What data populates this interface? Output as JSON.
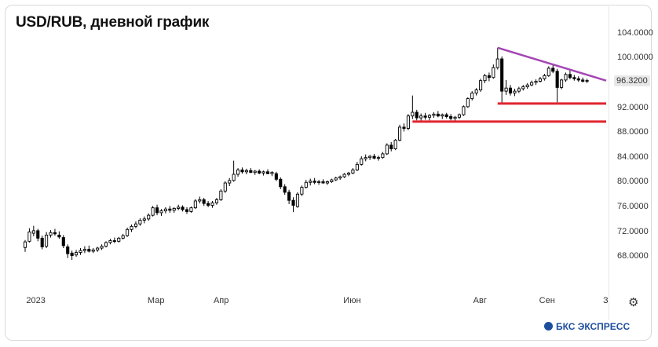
{
  "title": "USD/RUB, дневной график",
  "current_price": "96.3200",
  "brand": "БКС ЭКСПРЕСС",
  "icons": {
    "settings": "gear-icon",
    "brand": "bks-logo-icon"
  },
  "colors": {
    "candle": "#000000",
    "support": "#e0242f",
    "resistance": "#a347b3"
  },
  "chart_data": {
    "type": "candlestick",
    "title": "USD/RUB, дневной график",
    "ylim": [
      65.0,
      105.5
    ],
    "y_ticks": [
      "104.0000",
      "100.0000",
      "96.3200",
      "92.0000",
      "88.0000",
      "84.0000",
      "80.0000",
      "76.0000",
      "72.0000",
      "68.0000"
    ],
    "y_tick_values": [
      104,
      100,
      96.32,
      92,
      88,
      84,
      80,
      76,
      72,
      68
    ],
    "x_ticks": [
      "2023",
      "Мар",
      "Апр",
      "Июн",
      "Авг",
      "Сен",
      "З"
    ],
    "x_tick_days": [
      3,
      60,
      91,
      152,
      213,
      244,
      274
    ],
    "x_range_days": [
      1,
      274
    ],
    "series": [
      {
        "name": "USD/RUB",
        "ohlc": [
          [
            1,
            69.4,
            70.6,
            68.7,
            70.3
          ],
          [
            3,
            70.4,
            72.5,
            70.2,
            71.9
          ],
          [
            5,
            71.7,
            72.9,
            71.2,
            72.1
          ],
          [
            7,
            72.1,
            72.4,
            70.4,
            70.9
          ],
          [
            9,
            70.9,
            71.3,
            69.1,
            69.5
          ],
          [
            11,
            69.6,
            71.9,
            69.3,
            71.4
          ],
          [
            13,
            71.4,
            72.2,
            71.0,
            71.8
          ],
          [
            15,
            71.8,
            72.4,
            71.3,
            71.6
          ],
          [
            17,
            71.4,
            72.0,
            70.8,
            71.1
          ],
          [
            19,
            71.0,
            71.4,
            69.3,
            69.7
          ],
          [
            21,
            69.5,
            69.9,
            67.7,
            68.4
          ],
          [
            23,
            68.5,
            68.9,
            67.4,
            68.1
          ],
          [
            25,
            68.2,
            69.0,
            67.9,
            68.6
          ],
          [
            27,
            68.6,
            69.3,
            68.2,
            68.9
          ],
          [
            29,
            68.9,
            69.6,
            68.5,
            69.1
          ],
          [
            31,
            69.1,
            69.7,
            68.6,
            68.8
          ],
          [
            33,
            68.8,
            69.3,
            68.5,
            69.0
          ],
          [
            35,
            69.0,
            69.5,
            68.7,
            69.3
          ],
          [
            37,
            69.3,
            69.9,
            69.0,
            69.6
          ],
          [
            39,
            69.6,
            70.4,
            69.4,
            70.2
          ],
          [
            41,
            70.2,
            70.8,
            69.9,
            70.5
          ],
          [
            43,
            70.5,
            71.0,
            70.1,
            70.4
          ],
          [
            45,
            70.4,
            71.1,
            70.2,
            70.9
          ],
          [
            47,
            70.9,
            71.6,
            70.7,
            71.3
          ],
          [
            49,
            71.3,
            72.6,
            71.1,
            72.3
          ],
          [
            51,
            72.3,
            73.1,
            71.9,
            72.8
          ],
          [
            53,
            72.8,
            73.6,
            72.5,
            73.2
          ],
          [
            55,
            73.2,
            74.1,
            72.9,
            73.8
          ],
          [
            57,
            73.8,
            74.4,
            73.3,
            74.0
          ],
          [
            59,
            74.0,
            74.9,
            73.7,
            74.6
          ],
          [
            61,
            74.6,
            76.1,
            74.4,
            75.8
          ],
          [
            63,
            75.8,
            76.3,
            74.6,
            75.0
          ],
          [
            65,
            75.0,
            75.6,
            74.5,
            75.3
          ],
          [
            67,
            75.3,
            75.9,
            74.9,
            75.6
          ],
          [
            69,
            75.6,
            76.1,
            75.0,
            75.4
          ],
          [
            71,
            75.4,
            75.9,
            75.0,
            75.7
          ],
          [
            73,
            75.7,
            76.3,
            75.4,
            75.9
          ],
          [
            75,
            75.9,
            76.2,
            75.2,
            75.5
          ],
          [
            77,
            75.5,
            75.9,
            74.8,
            75.2
          ],
          [
            79,
            75.2,
            76.0,
            75.0,
            75.8
          ],
          [
            81,
            75.8,
            77.2,
            75.6,
            76.9
          ],
          [
            83,
            76.9,
            77.6,
            76.5,
            77.1
          ],
          [
            85,
            77.1,
            77.4,
            76.1,
            76.5
          ],
          [
            87,
            76.5,
            76.9,
            75.9,
            76.2
          ],
          [
            89,
            76.2,
            76.9,
            75.8,
            76.6
          ],
          [
            91,
            76.6,
            77.4,
            76.3,
            77.1
          ],
          [
            93,
            77.1,
            78.8,
            76.9,
            78.5
          ],
          [
            95,
            78.5,
            80.1,
            78.2,
            79.8
          ],
          [
            97,
            79.8,
            80.6,
            79.3,
            80.2
          ],
          [
            99,
            80.2,
            83.4,
            80.0,
            81.2
          ],
          [
            101,
            81.2,
            82.2,
            80.8,
            81.9
          ],
          [
            103,
            81.9,
            82.3,
            81.3,
            81.6
          ],
          [
            105,
            81.6,
            82.1,
            81.2,
            81.8
          ],
          [
            107,
            81.8,
            82.2,
            81.4,
            81.5
          ],
          [
            109,
            81.5,
            81.9,
            81.1,
            81.7
          ],
          [
            111,
            81.7,
            82.0,
            81.2,
            81.4
          ],
          [
            113,
            81.4,
            81.8,
            81.0,
            81.6
          ],
          [
            115,
            81.6,
            82.0,
            81.2,
            81.3
          ],
          [
            117,
            81.3,
            81.7,
            80.9,
            81.5
          ],
          [
            119,
            81.3,
            81.6,
            80.1,
            80.4
          ],
          [
            121,
            80.4,
            80.7,
            78.8,
            79.2
          ],
          [
            123,
            79.2,
            79.6,
            77.9,
            78.3
          ],
          [
            125,
            78.3,
            78.7,
            76.4,
            77.0
          ],
          [
            127,
            77.0,
            77.5,
            75.1,
            76.2
          ],
          [
            129,
            76.0,
            78.3,
            75.8,
            78.0
          ],
          [
            131,
            78.0,
            79.4,
            77.7,
            79.1
          ],
          [
            133,
            79.1,
            80.3,
            78.9,
            79.9
          ],
          [
            135,
            79.9,
            80.5,
            79.4,
            80.1
          ],
          [
            137,
            80.1,
            80.6,
            79.6,
            79.9
          ],
          [
            139,
            79.9,
            80.3,
            79.5,
            80.0
          ],
          [
            141,
            80.0,
            80.4,
            79.7,
            79.8
          ],
          [
            143,
            79.8,
            80.2,
            79.5,
            80.0
          ],
          [
            145,
            80.0,
            80.5,
            79.8,
            80.3
          ],
          [
            147,
            80.3,
            80.8,
            80.1,
            80.6
          ],
          [
            149,
            80.6,
            81.0,
            80.3,
            80.8
          ],
          [
            151,
            80.8,
            81.4,
            80.6,
            81.2
          ],
          [
            153,
            81.2,
            81.6,
            80.9,
            81.4
          ],
          [
            155,
            81.4,
            82.2,
            81.2,
            81.9
          ],
          [
            157,
            81.9,
            83.2,
            81.7,
            82.8
          ],
          [
            159,
            82.8,
            84.1,
            82.6,
            83.7
          ],
          [
            161,
            83.7,
            84.4,
            83.3,
            83.9
          ],
          [
            163,
            83.9,
            84.3,
            83.5,
            84.1
          ],
          [
            165,
            84.1,
            84.5,
            83.6,
            83.8
          ],
          [
            167,
            83.8,
            84.2,
            83.4,
            83.9
          ],
          [
            169,
            83.9,
            84.8,
            83.7,
            84.5
          ],
          [
            171,
            84.5,
            86.2,
            84.3,
            85.9
          ],
          [
            173,
            85.9,
            86.4,
            84.9,
            85.3
          ],
          [
            175,
            85.3,
            86.9,
            85.1,
            86.7
          ],
          [
            177,
            86.7,
            89.2,
            86.5,
            88.8
          ],
          [
            179,
            88.8,
            89.4,
            88.1,
            88.6
          ],
          [
            181,
            88.6,
            90.9,
            88.3,
            90.6
          ],
          [
            183,
            90.6,
            93.9,
            90.1,
            91.2
          ],
          [
            185,
            91.2,
            91.6,
            89.9,
            90.3
          ],
          [
            187,
            90.3,
            91.0,
            89.8,
            90.6
          ],
          [
            189,
            90.6,
            91.1,
            90.0,
            90.4
          ],
          [
            191,
            90.4,
            90.9,
            89.9,
            90.7
          ],
          [
            193,
            90.7,
            91.2,
            90.3,
            90.9
          ],
          [
            195,
            90.9,
            91.4,
            90.4,
            90.6
          ],
          [
            197,
            90.6,
            91.0,
            90.1,
            90.8
          ],
          [
            199,
            90.8,
            91.1,
            90.2,
            90.5
          ],
          [
            201,
            90.5,
            90.9,
            89.9,
            90.2
          ],
          [
            203,
            90.2,
            90.6,
            89.8,
            90.4
          ],
          [
            205,
            90.4,
            91.0,
            90.1,
            90.8
          ],
          [
            207,
            90.8,
            92.3,
            90.6,
            92.1
          ],
          [
            209,
            92.1,
            93.6,
            91.9,
            93.4
          ],
          [
            211,
            93.4,
            94.6,
            93.1,
            94.3
          ],
          [
            213,
            94.3,
            95.1,
            93.9,
            94.8
          ],
          [
            215,
            94.8,
            96.6,
            94.5,
            96.3
          ],
          [
            217,
            96.3,
            97.4,
            95.9,
            97.1
          ],
          [
            219,
            97.1,
            97.6,
            96.2,
            96.8
          ],
          [
            221,
            96.8,
            98.9,
            96.6,
            98.4
          ],
          [
            223,
            98.4,
            101.6,
            98.1,
            99.8
          ],
          [
            225,
            99.8,
            100.2,
            92.6,
            94.6
          ],
          [
            227,
            94.6,
            96.4,
            94.0,
            95.1
          ],
          [
            229,
            95.1,
            95.6,
            93.9,
            94.3
          ],
          [
            231,
            94.3,
            95.0,
            93.8,
            94.6
          ],
          [
            233,
            94.6,
            95.3,
            94.3,
            95.0
          ],
          [
            235,
            95.0,
            95.6,
            94.7,
            95.3
          ],
          [
            237,
            95.3,
            95.9,
            95.0,
            95.6
          ],
          [
            239,
            95.6,
            96.3,
            95.4,
            96.0
          ],
          [
            241,
            96.0,
            96.5,
            95.6,
            96.2
          ],
          [
            243,
            96.2,
            96.9,
            96.0,
            96.6
          ],
          [
            245,
            96.6,
            97.4,
            96.3,
            97.1
          ],
          [
            247,
            97.1,
            98.6,
            96.9,
            98.3
          ],
          [
            249,
            98.3,
            98.9,
            97.5,
            97.8
          ],
          [
            251,
            97.8,
            98.2,
            92.8,
            95.2
          ],
          [
            253,
            95.2,
            96.6,
            94.9,
            96.4
          ],
          [
            255,
            96.4,
            97.6,
            96.1,
            97.3
          ],
          [
            257,
            97.3,
            97.9,
            96.5,
            96.8
          ],
          [
            259,
            96.8,
            97.2,
            96.3,
            96.6
          ],
          [
            261,
            96.6,
            97.0,
            96.1,
            96.4
          ],
          [
            263,
            96.4,
            96.8,
            96.0,
            96.2
          ],
          [
            265,
            96.2,
            96.6,
            95.9,
            96.32
          ]
        ]
      }
    ],
    "annotations": [
      {
        "kind": "resistance",
        "x1": 223,
        "y1": 101.6,
        "x2": 274,
        "y2": 96.3
      },
      {
        "kind": "support",
        "x1": 223,
        "y1": 92.6,
        "x2": 274,
        "y2": 92.6
      },
      {
        "kind": "support",
        "x1": 183,
        "y1": 89.7,
        "x2": 274,
        "y2": 89.7
      }
    ]
  }
}
